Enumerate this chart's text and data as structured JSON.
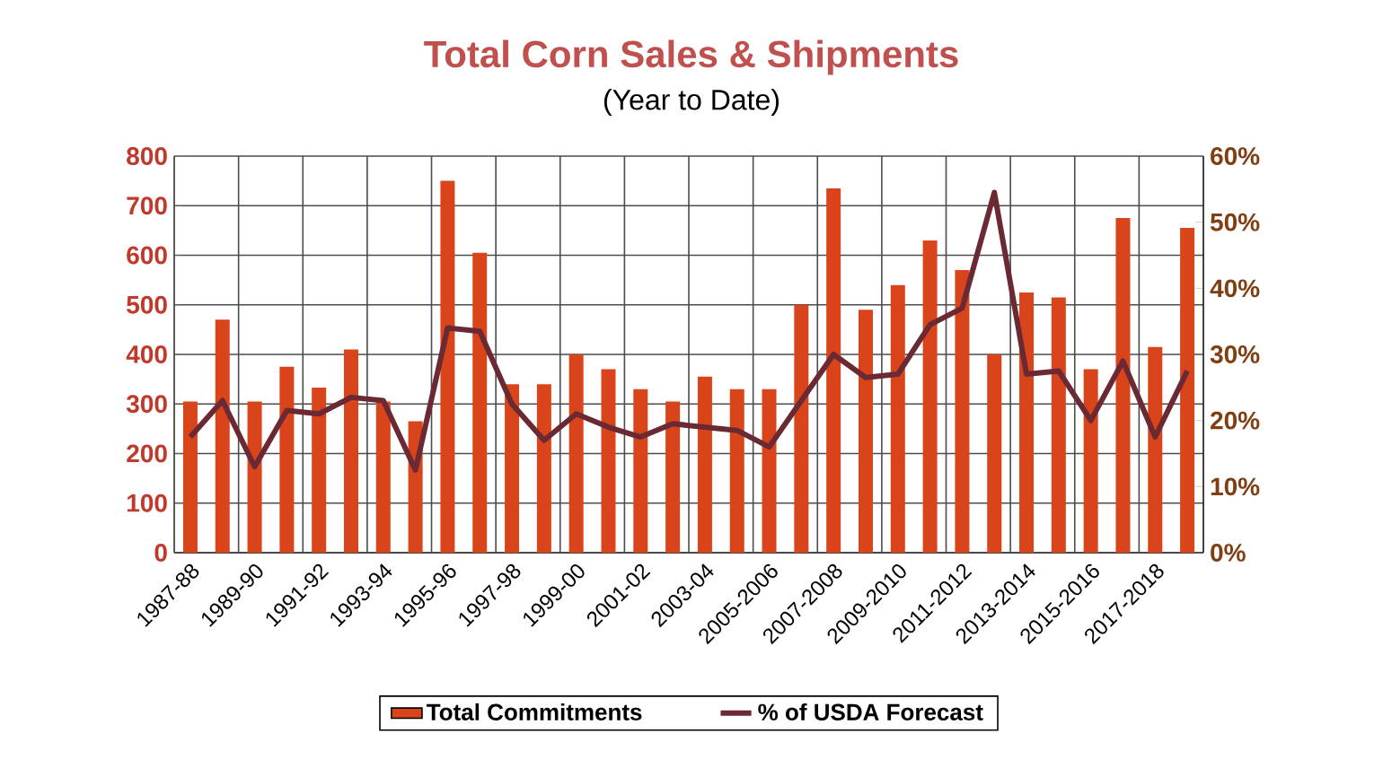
{
  "chart_data": {
    "type": "bar",
    "title": "Total Corn Sales & Shipments",
    "subtitle": "(Year to Date)",
    "categories": [
      "1987-88",
      null,
      "1989-90",
      null,
      "1991-92",
      null,
      "1993-94",
      null,
      "1995-96",
      null,
      "1997-98",
      null,
      "1999-00",
      null,
      "2001-02",
      null,
      "2003-04",
      null,
      "2005-2006",
      null,
      "2007-2008",
      null,
      "2009-2010",
      null,
      "2011-2012",
      null,
      "2013-2014",
      null,
      "2015-2016",
      null,
      "2017-2018",
      null
    ],
    "series": [
      {
        "name": "Total Commitments",
        "color": "#d9441a",
        "values": [
          305,
          470,
          305,
          375,
          333,
          410,
          305,
          265,
          750,
          605,
          340,
          340,
          400,
          370,
          330,
          305,
          355,
          330,
          330,
          500,
          735,
          490,
          540,
          630,
          570,
          400,
          525,
          515,
          370,
          675,
          415,
          655
        ]
      },
      {
        "name": "% of USDA Forecast",
        "type": "line",
        "axis": "y2",
        "color": "#6b2a33",
        "values": [
          17.5,
          23,
          13,
          21.5,
          21,
          23.5,
          23,
          12.5,
          34,
          33.5,
          22.5,
          17,
          21,
          19,
          17.5,
          19.5,
          19,
          18.5,
          16,
          23,
          30,
          26.5,
          27,
          34.5,
          37,
          54.5,
          27,
          27.5,
          20,
          29,
          17.5,
          27.5
        ]
      }
    ],
    "ylim": [
      0,
      800
    ],
    "yticks": [
      0,
      100,
      200,
      300,
      400,
      500,
      600,
      700,
      800
    ],
    "y2lim": [
      0,
      60
    ],
    "y2ticks": [
      {
        "value": 0,
        "label": "0%"
      },
      {
        "value": 10,
        "label": "10%"
      },
      {
        "value": 20,
        "label": "20%"
      },
      {
        "value": 30,
        "label": "30%"
      },
      {
        "value": 40,
        "label": "40%"
      },
      {
        "value": 50,
        "label": "50%"
      },
      {
        "value": 60,
        "label": "60%"
      }
    ],
    "grid": true,
    "legend": "bottom"
  }
}
